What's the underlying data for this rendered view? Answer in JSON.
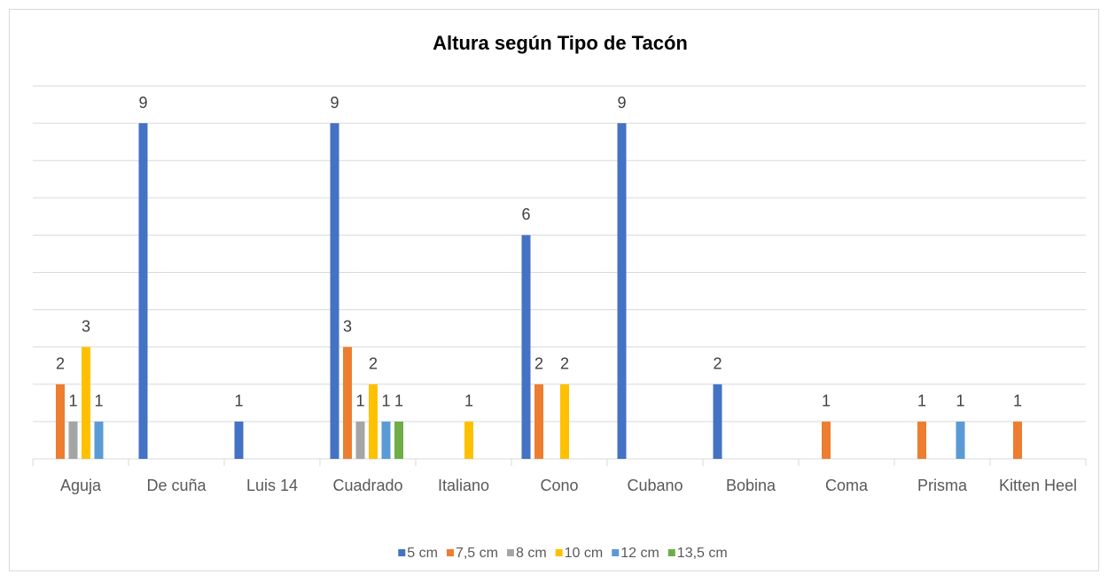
{
  "chart_data": {
    "type": "bar",
    "title": "Altura según Tipo de Tacón",
    "categories": [
      "Aguja",
      "De cuña",
      "Luis 14",
      "Cuadrado",
      "Italiano",
      "Cono",
      "Cubano",
      "Bobina",
      "Coma",
      "Prisma",
      "Kitten Heel"
    ],
    "series": [
      {
        "name": "5 cm",
        "color": "#4472c4",
        "values": [
          null,
          9,
          1,
          9,
          null,
          6,
          9,
          2,
          null,
          null,
          null
        ]
      },
      {
        "name": "7,5 cm",
        "color": "#ed7d31",
        "values": [
          2,
          null,
          null,
          3,
          null,
          2,
          null,
          null,
          1,
          1,
          1
        ]
      },
      {
        "name": "8 cm",
        "color": "#a5a5a5",
        "values": [
          1,
          null,
          null,
          1,
          null,
          null,
          null,
          null,
          null,
          null,
          null
        ]
      },
      {
        "name": "10 cm",
        "color": "#ffc000",
        "values": [
          3,
          null,
          null,
          2,
          1,
          2,
          null,
          null,
          null,
          null,
          null
        ]
      },
      {
        "name": "12 cm",
        "color": "#5b9bd5",
        "values": [
          1,
          null,
          null,
          1,
          null,
          null,
          null,
          null,
          null,
          1,
          null
        ]
      },
      {
        "name": "13,5 cm",
        "color": "#70ad47",
        "values": [
          null,
          null,
          null,
          1,
          null,
          null,
          null,
          null,
          null,
          null,
          null
        ]
      }
    ],
    "ylim": [
      0,
      10
    ],
    "yticks": [
      0,
      1,
      2,
      3,
      4,
      5,
      6,
      7,
      8,
      9,
      10
    ],
    "grid": true,
    "legend": "bottom"
  }
}
